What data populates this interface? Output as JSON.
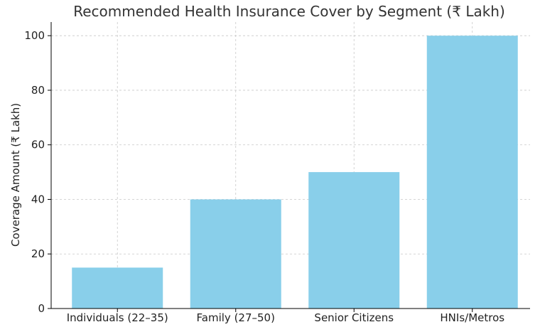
{
  "chart_data": {
    "type": "bar",
    "title": "Recommended Health Insurance Cover by Segment (₹ Lakh)",
    "xlabel": "",
    "ylabel": "Coverage Amount (₹ Lakh)",
    "categories": [
      "Individuals (22–35)",
      "Family (27–50)",
      "Senior Citizens",
      "HNIs/Metros"
    ],
    "values": [
      15,
      40,
      50,
      100
    ],
    "ylim": [
      0,
      105
    ],
    "yticks": [
      0,
      20,
      40,
      60,
      80,
      100
    ],
    "grid": true,
    "bar_color": "#89CFEA"
  }
}
